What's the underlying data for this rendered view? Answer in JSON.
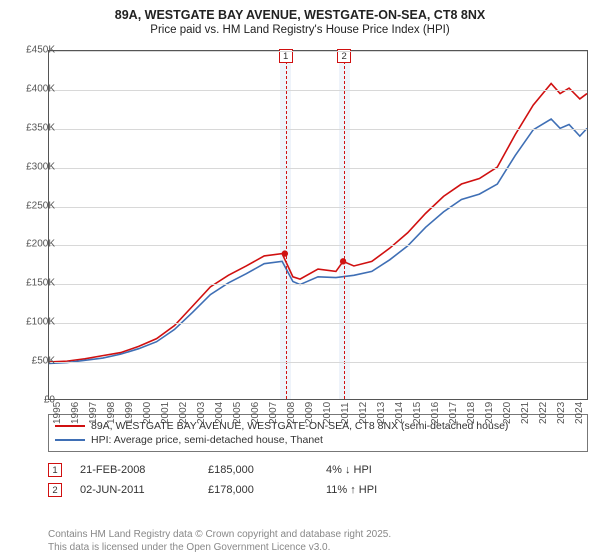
{
  "title": "89A, WESTGATE BAY AVENUE, WESTGATE-ON-SEA, CT8 8NX",
  "subtitle": "Price paid vs. HM Land Registry's House Price Index (HPI)",
  "chart": {
    "type": "line",
    "xlim": [
      1995,
      2025
    ],
    "ylim": [
      0,
      450000
    ],
    "ytick_step": 50000,
    "ytick_labels": [
      "£0",
      "£50K",
      "£100K",
      "£150K",
      "£200K",
      "£250K",
      "£300K",
      "£350K",
      "£400K",
      "£450K"
    ],
    "xticks": [
      1995,
      1996,
      1997,
      1998,
      1999,
      2000,
      2001,
      2002,
      2003,
      2004,
      2005,
      2006,
      2007,
      2008,
      2009,
      2010,
      2011,
      2012,
      2013,
      2014,
      2015,
      2016,
      2017,
      2018,
      2019,
      2020,
      2021,
      2022,
      2023,
      2024
    ],
    "grid_color": "#d8d8d8",
    "border_color": "#555555",
    "background_color": "#ffffff",
    "label_fontsize": 10,
    "title_fontsize": 12.5,
    "line_width": 1.6,
    "series": [
      {
        "name": "89A, WESTGATE BAY AVENUE, WESTGATE-ON-SEA, CT8 8NX (semi-detached house)",
        "color": "#d01010",
        "points": [
          [
            1995,
            48000
          ],
          [
            1996,
            49000
          ],
          [
            1997,
            52000
          ],
          [
            1998,
            56000
          ],
          [
            1999,
            60000
          ],
          [
            2000,
            68000
          ],
          [
            2001,
            78000
          ],
          [
            2002,
            95000
          ],
          [
            2003,
            120000
          ],
          [
            2004,
            145000
          ],
          [
            2005,
            160000
          ],
          [
            2006,
            172000
          ],
          [
            2007,
            185000
          ],
          [
            2008,
            188000
          ],
          [
            2008.6,
            158000
          ],
          [
            2009,
            155000
          ],
          [
            2010,
            168000
          ],
          [
            2011,
            165000
          ],
          [
            2011.4,
            178000
          ],
          [
            2012,
            172000
          ],
          [
            2013,
            178000
          ],
          [
            2014,
            195000
          ],
          [
            2015,
            215000
          ],
          [
            2016,
            240000
          ],
          [
            2017,
            262000
          ],
          [
            2018,
            278000
          ],
          [
            2019,
            285000
          ],
          [
            2020,
            300000
          ],
          [
            2021,
            342000
          ],
          [
            2022,
            380000
          ],
          [
            2023,
            408000
          ],
          [
            2023.5,
            395000
          ],
          [
            2024,
            402000
          ],
          [
            2024.6,
            388000
          ],
          [
            2025,
            395000
          ]
        ]
      },
      {
        "name": "HPI: Average price, semi-detached house, Thanet",
        "color": "#3f6fb5",
        "points": [
          [
            1995,
            46000
          ],
          [
            1996,
            47000
          ],
          [
            1997,
            50000
          ],
          [
            1998,
            53000
          ],
          [
            1999,
            58000
          ],
          [
            2000,
            65000
          ],
          [
            2001,
            74000
          ],
          [
            2002,
            90000
          ],
          [
            2003,
            112000
          ],
          [
            2004,
            135000
          ],
          [
            2005,
            150000
          ],
          [
            2006,
            162000
          ],
          [
            2007,
            175000
          ],
          [
            2008,
            178000
          ],
          [
            2008.6,
            152000
          ],
          [
            2009,
            148000
          ],
          [
            2010,
            158000
          ],
          [
            2011,
            157000
          ],
          [
            2012,
            160000
          ],
          [
            2013,
            165000
          ],
          [
            2014,
            180000
          ],
          [
            2015,
            198000
          ],
          [
            2016,
            222000
          ],
          [
            2017,
            242000
          ],
          [
            2018,
            258000
          ],
          [
            2019,
            265000
          ],
          [
            2020,
            278000
          ],
          [
            2021,
            315000
          ],
          [
            2022,
            348000
          ],
          [
            2023,
            362000
          ],
          [
            2023.5,
            350000
          ],
          [
            2024,
            355000
          ],
          [
            2024.6,
            340000
          ],
          [
            2025,
            350000
          ]
        ]
      }
    ],
    "markers": [
      {
        "num": "1",
        "x": 2008.15,
        "color": "#d01010",
        "band_color": "#eef3fa",
        "band_width": 0.6
      },
      {
        "num": "2",
        "x": 2011.4,
        "color": "#d01010",
        "band_color": "#eef3fa",
        "band_width": 0.6
      }
    ]
  },
  "legend": {
    "rows": [
      {
        "color": "#d01010",
        "label": "89A, WESTGATE BAY AVENUE, WESTGATE-ON-SEA, CT8 8NX (semi-detached house)"
      },
      {
        "color": "#3f6fb5",
        "label": "HPI: Average price, semi-detached house, Thanet"
      }
    ]
  },
  "sales": [
    {
      "num": "1",
      "color": "#d01010",
      "date": "21-FEB-2008",
      "price": "£185,000",
      "delta": "4% ↓ HPI"
    },
    {
      "num": "2",
      "color": "#d01010",
      "date": "02-JUN-2011",
      "price": "£178,000",
      "delta": "11% ↑ HPI"
    }
  ],
  "footer_line1": "Contains HM Land Registry data © Crown copyright and database right 2025.",
  "footer_line2": "This data is licensed under the Open Government Licence v3.0."
}
